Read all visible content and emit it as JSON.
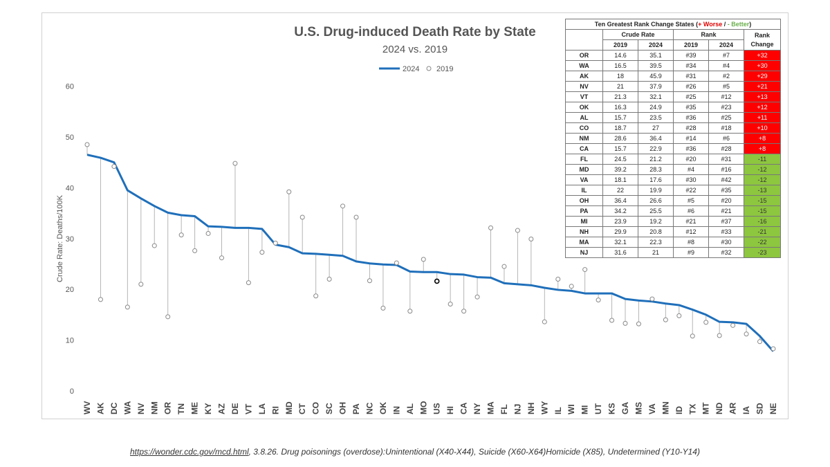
{
  "chart_data": {
    "type": "line",
    "title": "U.S. Drug-induced Death Rate by State",
    "subtitle": "2024 vs. 2019",
    "ylabel": "Crude Rate: Deaths/100K",
    "ylim": [
      0,
      60
    ],
    "yticks": [
      0,
      10,
      20,
      30,
      40,
      50,
      60
    ],
    "legend": {
      "position": "top-center",
      "entries": [
        "2024",
        "2019"
      ]
    },
    "categories": [
      "WV",
      "AK",
      "DC",
      "WA",
      "NV",
      "NM",
      "OR",
      "TN",
      "ME",
      "KY",
      "AZ",
      "DE",
      "VT",
      "LA",
      "RI",
      "MD",
      "CT",
      "CO",
      "SC",
      "OH",
      "PA",
      "NC",
      "OK",
      "IN",
      "AL",
      "MO",
      "US",
      "HI",
      "CA",
      "NY",
      "MA",
      "FL",
      "NJ",
      "NH",
      "WY",
      "IL",
      "WI",
      "MI",
      "UT",
      "KS",
      "GA",
      "MS",
      "VA",
      "MN",
      "ID",
      "TX",
      "MT",
      "ND",
      "AR",
      "IA",
      "SD",
      "NE"
    ],
    "series": [
      {
        "name": "2024",
        "style": "line",
        "color": "#1f6fba",
        "values": [
          46.5,
          45.9,
          45.0,
          39.5,
          37.9,
          36.4,
          35.1,
          34.6,
          34.4,
          32.4,
          32.3,
          32.1,
          32.1,
          31.9,
          28.8,
          28.3,
          27.1,
          27.0,
          26.8,
          26.6,
          25.5,
          25.1,
          24.9,
          24.8,
          23.5,
          23.4,
          23.4,
          23.0,
          22.9,
          22.4,
          22.3,
          21.2,
          21.0,
          20.8,
          20.3,
          19.9,
          19.7,
          19.2,
          19.2,
          19.2,
          18.1,
          17.8,
          17.6,
          17.2,
          16.9,
          16.0,
          15.0,
          13.6,
          13.5,
          13.2,
          10.8,
          7.8
        ]
      },
      {
        "name": "2019",
        "style": "marker",
        "color": "#888888",
        "values": [
          48.5,
          18.0,
          44.2,
          16.5,
          21.0,
          28.6,
          14.6,
          30.7,
          27.6,
          31.0,
          26.2,
          44.8,
          21.3,
          27.3,
          29.1,
          39.2,
          34.2,
          18.7,
          22.0,
          36.4,
          34.2,
          21.7,
          16.3,
          25.2,
          15.7,
          25.9,
          21.6,
          17.1,
          15.7,
          18.5,
          32.1,
          24.5,
          31.6,
          29.9,
          13.6,
          22.0,
          20.6,
          23.9,
          17.9,
          13.9,
          13.3,
          13.2,
          18.1,
          14.0,
          14.8,
          10.8,
          13.5,
          10.9,
          12.9,
          11.2,
          9.7,
          8.3
        ]
      }
    ],
    "highlight_category": "US"
  },
  "table": {
    "title_prefix": "Ten Greatest Rank Change States (",
    "worse_label": "+ Worse",
    "separator": " / ",
    "better_label": "- Better",
    "title_suffix": ")",
    "headers": {
      "crude_rate": "Crude Rate",
      "rank": "Rank",
      "rank_change_1": "Rank",
      "rank_change_2": "Change",
      "y2019": "2019",
      "y2024": "2024"
    },
    "colors": {
      "worse": "#ff0000",
      "better": "#8dc63f"
    },
    "rows": [
      {
        "state": "OR",
        "rate2019": "14.6",
        "rate2024": "35.1",
        "rank2019": "#39",
        "rank2024": "#7",
        "change": "+32",
        "kind": "worse"
      },
      {
        "state": "WA",
        "rate2019": "16.5",
        "rate2024": "39.5",
        "rank2019": "#34",
        "rank2024": "#4",
        "change": "+30",
        "kind": "worse"
      },
      {
        "state": "AK",
        "rate2019": "18",
        "rate2024": "45.9",
        "rank2019": "#31",
        "rank2024": "#2",
        "change": "+29",
        "kind": "worse"
      },
      {
        "state": "NV",
        "rate2019": "21",
        "rate2024": "37.9",
        "rank2019": "#26",
        "rank2024": "#5",
        "change": "+21",
        "kind": "worse"
      },
      {
        "state": "VT",
        "rate2019": "21.3",
        "rate2024": "32.1",
        "rank2019": "#25",
        "rank2024": "#12",
        "change": "+13",
        "kind": "worse"
      },
      {
        "state": "OK",
        "rate2019": "16.3",
        "rate2024": "24.9",
        "rank2019": "#35",
        "rank2024": "#23",
        "change": "+12",
        "kind": "worse"
      },
      {
        "state": "AL",
        "rate2019": "15.7",
        "rate2024": "23.5",
        "rank2019": "#36",
        "rank2024": "#25",
        "change": "+11",
        "kind": "worse"
      },
      {
        "state": "CO",
        "rate2019": "18.7",
        "rate2024": "27",
        "rank2019": "#28",
        "rank2024": "#18",
        "change": "+10",
        "kind": "worse"
      },
      {
        "state": "NM",
        "rate2019": "28.6",
        "rate2024": "36.4",
        "rank2019": "#14",
        "rank2024": "#6",
        "change": "+8",
        "kind": "worse"
      },
      {
        "state": "CA",
        "rate2019": "15.7",
        "rate2024": "22.9",
        "rank2019": "#36",
        "rank2024": "#28",
        "change": "+8",
        "kind": "worse"
      },
      {
        "state": "FL",
        "rate2019": "24.5",
        "rate2024": "21.2",
        "rank2019": "#20",
        "rank2024": "#31",
        "change": "-11",
        "kind": "better"
      },
      {
        "state": "MD",
        "rate2019": "39.2",
        "rate2024": "28.3",
        "rank2019": "#4",
        "rank2024": "#16",
        "change": "-12",
        "kind": "better"
      },
      {
        "state": "VA",
        "rate2019": "18.1",
        "rate2024": "17.6",
        "rank2019": "#30",
        "rank2024": "#42",
        "change": "-12",
        "kind": "better"
      },
      {
        "state": "IL",
        "rate2019": "22",
        "rate2024": "19.9",
        "rank2019": "#22",
        "rank2024": "#35",
        "change": "-13",
        "kind": "better"
      },
      {
        "state": "OH",
        "rate2019": "36.4",
        "rate2024": "26.6",
        "rank2019": "#5",
        "rank2024": "#20",
        "change": "-15",
        "kind": "better"
      },
      {
        "state": "PA",
        "rate2019": "34.2",
        "rate2024": "25.5",
        "rank2019": "#6",
        "rank2024": "#21",
        "change": "-15",
        "kind": "better"
      },
      {
        "state": "MI",
        "rate2019": "23.9",
        "rate2024": "19.2",
        "rank2019": "#21",
        "rank2024": "#37",
        "change": "-16",
        "kind": "better"
      },
      {
        "state": "NH",
        "rate2019": "29.9",
        "rate2024": "20.8",
        "rank2019": "#12",
        "rank2024": "#33",
        "change": "-21",
        "kind": "better"
      },
      {
        "state": "MA",
        "rate2019": "32.1",
        "rate2024": "22.3",
        "rank2019": "#8",
        "rank2024": "#30",
        "change": "-22",
        "kind": "better"
      },
      {
        "state": "NJ",
        "rate2019": "31.6",
        "rate2024": "21",
        "rank2019": "#9",
        "rank2024": "#32",
        "change": "-23",
        "kind": "better"
      }
    ]
  },
  "source": {
    "link_text": "https://wonder.cdc.gov/mcd.html",
    "description": ", 3.8.26. Drug poisonings (overdose):Unintentional (X40-X44), Suicide (X60-X64)Homicide (X85), Undetermined (Y10-Y14)"
  }
}
